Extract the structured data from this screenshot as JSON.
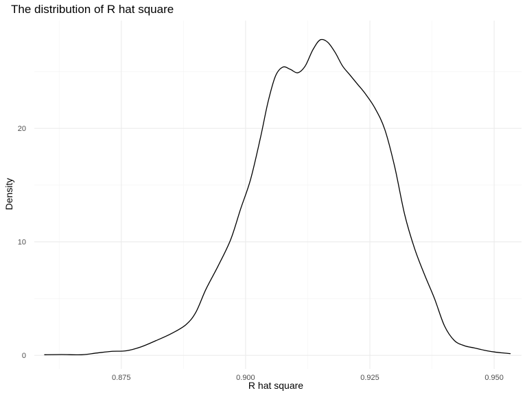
{
  "chart_data": {
    "type": "line",
    "title": "The distribution of R hat square",
    "xlabel": "R hat square",
    "ylabel": "Density",
    "xlim": [
      0.8575,
      0.9555
    ],
    "ylim": [
      -1.2,
      29.5
    ],
    "x_ticks": [
      0.875,
      0.9,
      0.925,
      0.95
    ],
    "x_tick_labels": [
      "0.875",
      "0.900",
      "0.925",
      "0.950"
    ],
    "y_ticks": [
      0,
      10,
      20
    ],
    "y_tick_labels": [
      "0",
      "10",
      "20"
    ],
    "grid": true,
    "legend": "none",
    "series": [
      {
        "line_color": "#000000",
        "x": [
          0.8595,
          0.863,
          0.867,
          0.87,
          0.873,
          0.876,
          0.879,
          0.882,
          0.885,
          0.888,
          0.89,
          0.892,
          0.8945,
          0.897,
          0.899,
          0.901,
          0.903,
          0.9045,
          0.906,
          0.9075,
          0.909,
          0.9105,
          0.912,
          0.9135,
          0.915,
          0.9165,
          0.918,
          0.9195,
          0.921,
          0.9225,
          0.924,
          0.926,
          0.928,
          0.93,
          0.932,
          0.934,
          0.936,
          0.938,
          0.94,
          0.942,
          0.944,
          0.946,
          0.948,
          0.95,
          0.9515,
          0.9533
        ],
        "y": [
          0.05,
          0.07,
          0.05,
          0.2,
          0.35,
          0.4,
          0.75,
          1.3,
          1.9,
          2.7,
          3.8,
          5.8,
          7.9,
          10.2,
          12.9,
          15.5,
          19.2,
          22.3,
          24.6,
          25.4,
          25.2,
          24.9,
          25.5,
          26.9,
          27.8,
          27.6,
          26.7,
          25.5,
          24.7,
          23.9,
          23.1,
          21.8,
          19.9,
          16.6,
          12.4,
          9.4,
          7.1,
          5.0,
          2.6,
          1.3,
          0.85,
          0.65,
          0.45,
          0.3,
          0.22,
          0.15
        ]
      }
    ]
  }
}
